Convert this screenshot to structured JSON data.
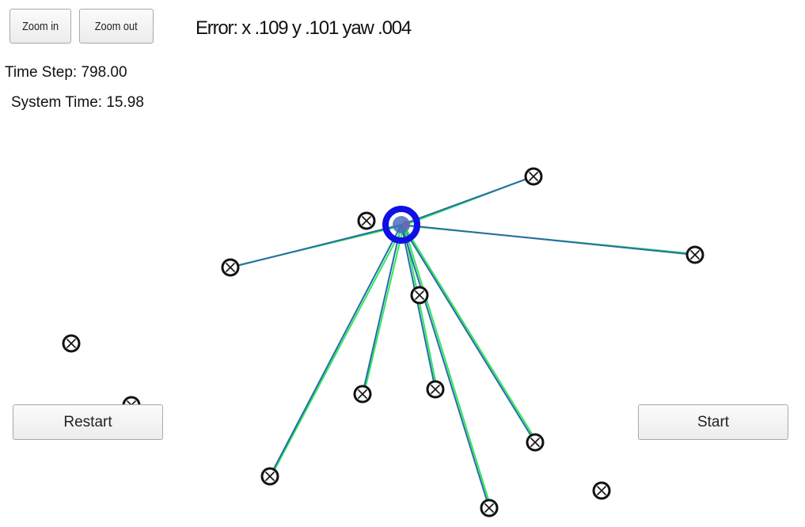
{
  "toolbar": {
    "zoom_in_label": "Zoom in",
    "zoom_out_label": "Zoom out"
  },
  "status": {
    "error_text": "Error: x .109 y .101 yaw .004",
    "time_step_text": "Time Step: 798.00",
    "system_time_text": "System Time: 15.98"
  },
  "controls": {
    "restart_label": "Restart",
    "start_label": "Start"
  },
  "colors": {
    "vehicle": "#1010e6",
    "observation_line": "#2a6aa8",
    "prediction_line": "#2ce85a",
    "landmark": "#111111"
  }
}
